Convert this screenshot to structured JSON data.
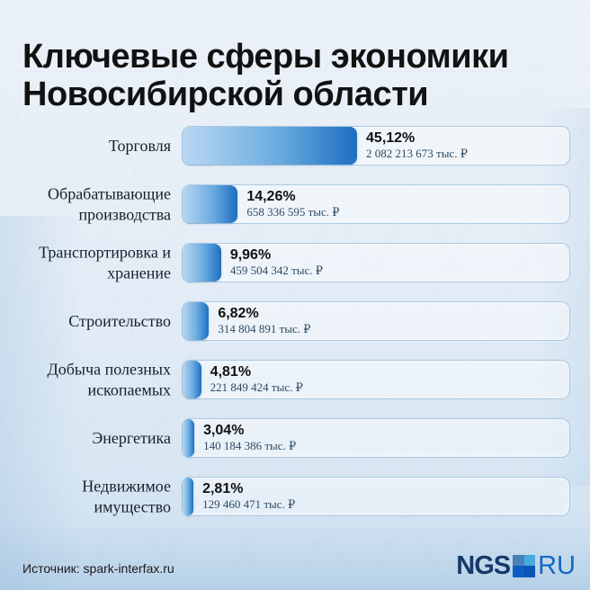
{
  "page": {
    "title_line1": "Ключевые сферы экономики",
    "title_line2": "Новосибирской области"
  },
  "chart_data": {
    "type": "bar",
    "orientation": "horizontal",
    "title": "Ключевые сферы экономики Новосибирской области",
    "categories": [
      "Торговля",
      "Обрабатывающие производства",
      "Транспортировка и хранение",
      "Строительство",
      "Добыча полезных ископаемых",
      "Энергетика",
      "Недвижимое имущество"
    ],
    "values": [
      45.12,
      14.26,
      9.96,
      6.82,
      4.81,
      3.04,
      2.81
    ],
    "percent_labels": [
      "45,12%",
      "14,26%",
      "9,96%",
      "6,82%",
      "4,81%",
      "3,04%",
      "2,81%"
    ],
    "amount_labels": [
      "2 082 213 673 тыс. ₽",
      "658 336 595 тыс. ₽",
      "459 504 342 тыс. ₽",
      "314 804 891 тыс. ₽",
      "221 849 424 тыс. ₽",
      "140 184 386 тыс. ₽",
      "129 460 471 тыс. ₽"
    ],
    "unit": "тыс. ₽",
    "xlim": [
      0,
      100
    ],
    "grid": "off",
    "legend": "none",
    "bar_gradient": [
      "#b9d8f2",
      "#1d6fc1"
    ]
  },
  "rows": [
    {
      "label": "Торговля",
      "percent": "45,12%",
      "amount": "2 082 213 673 тыс. ₽"
    },
    {
      "label": "Обрабатывающие производства",
      "percent": "14,26%",
      "amount": "658 336 595 тыс. ₽"
    },
    {
      "label": "Транспортировка и хранение",
      "percent": "9,96%",
      "amount": "459 504 342 тыс. ₽"
    },
    {
      "label": "Строительство",
      "percent": "6,82%",
      "amount": "314 804 891 тыс. ₽"
    },
    {
      "label": "Добыча полезных ископаемых",
      "percent": "4,81%",
      "amount": "221 849 424 тыс. ₽"
    },
    {
      "label": "Энергетика",
      "percent": "3,04%",
      "amount": "140 184 386 тыс. ₽"
    },
    {
      "label": "Недвижимое имущество",
      "percent": "2,81%",
      "amount": "129 460 471 тыс. ₽"
    }
  ],
  "footer": {
    "source": "Источник: spark-interfax.ru",
    "logo_text_1": "NGS",
    "logo_text_2": "RU"
  },
  "colors": {
    "accent_dark": "#1d6fc1",
    "accent_light": "#b9d8f2",
    "track_border": "#78a5c8",
    "amount_text": "#2e4a63",
    "logo_navy": "#16386b",
    "logo_blue": "#1467c5",
    "logo_square_quadrants": [
      "#4a80ba",
      "#47aade",
      "#0d5ec4",
      "#0a55b5"
    ]
  }
}
